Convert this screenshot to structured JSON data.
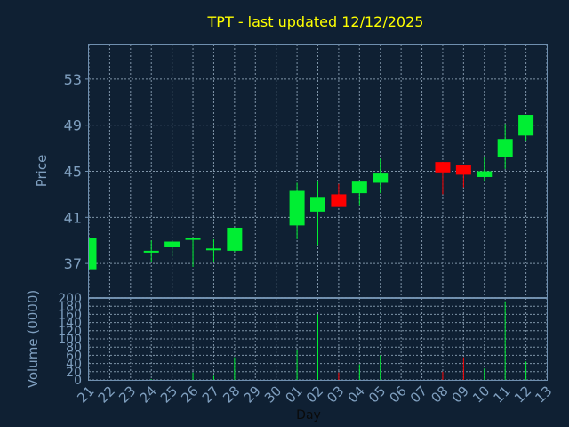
{
  "chart_data": {
    "type": "candlestick",
    "title": "TPT - last updated 12/12/2025",
    "xlabel": "Day",
    "x_tick_labels": [
      "21",
      "22",
      "23",
      "24",
      "25",
      "26",
      "27",
      "28",
      "29",
      "30",
      "01",
      "02",
      "03",
      "04",
      "05",
      "06",
      "07",
      "08",
      "09",
      "10",
      "11",
      "12",
      "13"
    ],
    "price": {
      "ylabel": "Price",
      "ylim": [
        34,
        56
      ],
      "y_ticks": [
        37,
        41,
        45,
        49,
        53
      ],
      "candles": [
        {
          "day": "21",
          "open": 36.5,
          "close": 39.2,
          "low": 36.5,
          "high": 39.2
        },
        {
          "day": "24",
          "open": 38.0,
          "close": 38.1,
          "low": 37.1,
          "high": 39.0
        },
        {
          "day": "25",
          "open": 38.4,
          "close": 38.9,
          "low": 37.6,
          "high": 39.0
        },
        {
          "day": "26",
          "open": 39.1,
          "close": 39.2,
          "low": 36.7,
          "high": 39.2
        },
        {
          "day": "27",
          "open": 38.2,
          "close": 38.3,
          "low": 37.1,
          "high": 39.1
        },
        {
          "day": "28",
          "open": 38.1,
          "close": 40.1,
          "low": 38.0,
          "high": 40.1
        },
        {
          "day": "01",
          "open": 40.3,
          "close": 43.3,
          "low": 39.1,
          "high": 44.0
        },
        {
          "day": "02",
          "open": 41.5,
          "close": 42.7,
          "low": 38.6,
          "high": 44.1
        },
        {
          "day": "03",
          "open": 43.0,
          "close": 41.9,
          "low": 41.9,
          "high": 43.9
        },
        {
          "day": "04",
          "open": 43.1,
          "close": 44.1,
          "low": 42.0,
          "high": 44.1
        },
        {
          "day": "05",
          "open": 44.0,
          "close": 44.8,
          "low": 43.1,
          "high": 46.1
        },
        {
          "day": "08",
          "open": 45.8,
          "close": 44.9,
          "low": 43.0,
          "high": 45.8
        },
        {
          "day": "09",
          "open": 45.5,
          "close": 44.7,
          "low": 43.6,
          "high": 45.5
        },
        {
          "day": "10",
          "open": 44.5,
          "close": 45.0,
          "low": 44.1,
          "high": 46.2
        },
        {
          "day": "11",
          "open": 46.2,
          "close": 47.8,
          "low": 45.2,
          "high": 49.1
        },
        {
          "day": "12",
          "open": 48.1,
          "close": 49.9,
          "low": 47.6,
          "high": 49.9
        }
      ]
    },
    "volume": {
      "ylabel": "Volume (0000)",
      "ylim": [
        0,
        200
      ],
      "y_ticks": [
        0,
        20,
        40,
        60,
        80,
        100,
        120,
        140,
        160,
        180,
        200
      ],
      "bars": [
        {
          "day": "21",
          "value": 0,
          "color": "green"
        },
        {
          "day": "24",
          "value": 2,
          "color": "green"
        },
        {
          "day": "25",
          "value": 0,
          "color": "green"
        },
        {
          "day": "26",
          "value": 18,
          "color": "green"
        },
        {
          "day": "27",
          "value": 10,
          "color": "green"
        },
        {
          "day": "28",
          "value": 55,
          "color": "green"
        },
        {
          "day": "01",
          "value": 72,
          "color": "green"
        },
        {
          "day": "02",
          "value": 160,
          "color": "green"
        },
        {
          "day": "03",
          "value": 18,
          "color": "red"
        },
        {
          "day": "04",
          "value": 38,
          "color": "green"
        },
        {
          "day": "05",
          "value": 60,
          "color": "green"
        },
        {
          "day": "08",
          "value": 20,
          "color": "red"
        },
        {
          "day": "09",
          "value": 55,
          "color": "red"
        },
        {
          "day": "10",
          "value": 28,
          "color": "green"
        },
        {
          "day": "11",
          "value": 192,
          "color": "green"
        },
        {
          "day": "12",
          "value": 45,
          "color": "green"
        }
      ]
    },
    "colors": {
      "background": "#0f2033",
      "up": "#00ee33",
      "down": "#ff0000",
      "title": "#ffff00",
      "axis_text": "#7f9fbf"
    }
  }
}
